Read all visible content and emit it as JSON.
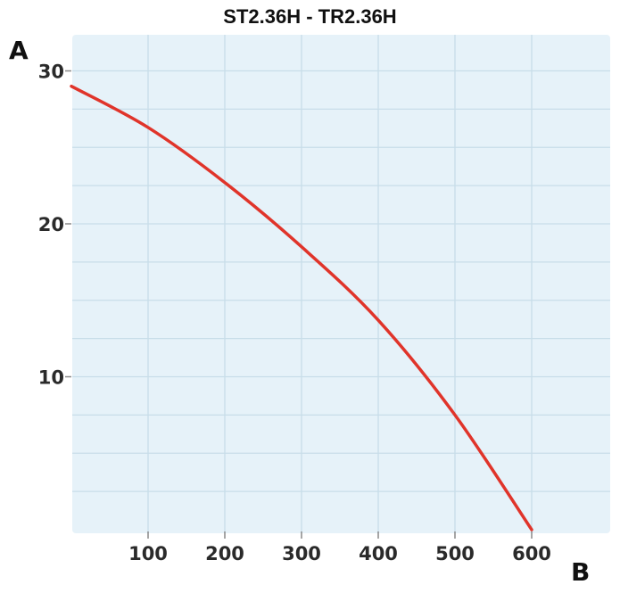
{
  "title": "ST2.36H - TR2.36H",
  "colors": {
    "plot_bg": "#e6f2f9",
    "grid": "#c8dde9",
    "curve": "#e0342a",
    "text": "#111111"
  },
  "chart_data": {
    "type": "line",
    "title": "ST2.36H - TR2.36H",
    "xlabel": "B",
    "ylabel": "A",
    "xlim": [
      0,
      700
    ],
    "ylim": [
      0,
      32.5
    ],
    "x_ticks": [
      100,
      200,
      300,
      400,
      500,
      600
    ],
    "y_ticks": [
      10,
      20,
      30
    ],
    "grid": true,
    "legend": null,
    "series": [
      {
        "name": "ST2.36H - TR2.36H",
        "x": [
          0,
          100,
          200,
          300,
          400,
          500,
          600
        ],
        "values": [
          29,
          26.3,
          22.7,
          18.5,
          13.7,
          7.5,
          0
        ]
      }
    ]
  }
}
